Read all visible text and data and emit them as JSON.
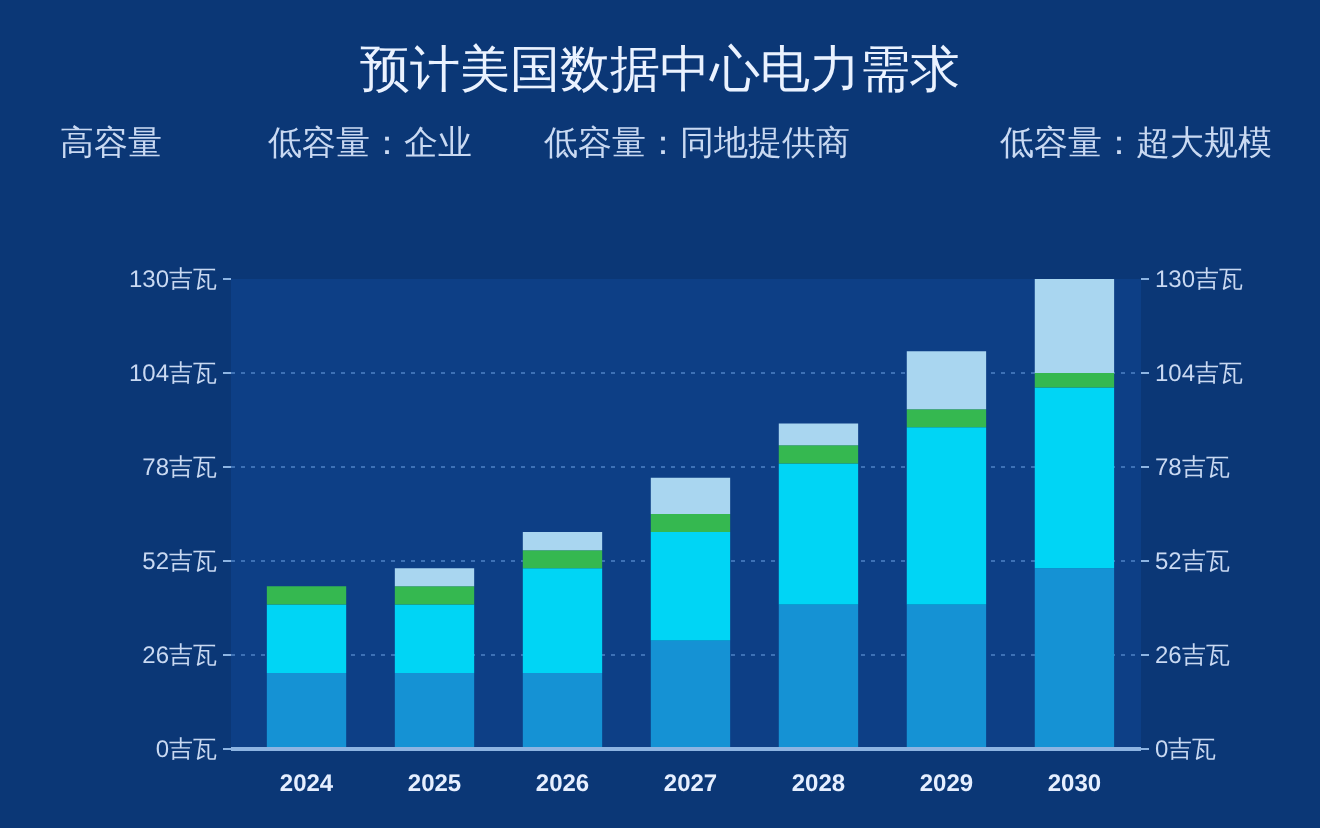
{
  "chart_data": {
    "type": "bar",
    "title": "预计美国数据中心电力需求",
    "annotations": [
      "高容量",
      "低容量：企业",
      "低容量：同地提供商",
      "低容量：超大规模"
    ],
    "categories": [
      "2024",
      "2025",
      "2026",
      "2027",
      "2028",
      "2029",
      "2030"
    ],
    "stacked": true,
    "series": [
      {
        "color": "#1592d4",
        "values": [
          21,
          21,
          21,
          30,
          40,
          40,
          50
        ]
      },
      {
        "color": "#00d5f5",
        "values": [
          19,
          19,
          29,
          30,
          39,
          49,
          50
        ]
      },
      {
        "color": "#35b850",
        "values": [
          5,
          5,
          5,
          5,
          5,
          5,
          4
        ]
      },
      {
        "color": "#a9d6f0",
        "values": [
          null,
          5,
          5,
          10,
          6,
          16,
          26
        ]
      }
    ],
    "ylim": [
      0,
      130
    ],
    "yticks": [
      {
        "value": 0,
        "label": "0吉瓦"
      },
      {
        "value": 26,
        "label": "26吉瓦"
      },
      {
        "value": 52,
        "label": "52吉瓦"
      },
      {
        "value": 78,
        "label": "78吉瓦"
      },
      {
        "value": 104,
        "label": "104吉瓦"
      },
      {
        "value": 130,
        "label": "130吉瓦"
      }
    ],
    "y2lim": [
      0,
      130
    ],
    "y2ticks": [
      {
        "value": 0,
        "label": "0吉瓦"
      },
      {
        "value": 26,
        "label": "26吉瓦"
      },
      {
        "value": 52,
        "label": "52吉瓦"
      },
      {
        "value": 78,
        "label": "78吉瓦"
      },
      {
        "value": 104,
        "label": "104吉瓦"
      },
      {
        "value": 130,
        "label": "130吉瓦"
      }
    ],
    "grid": "y"
  }
}
